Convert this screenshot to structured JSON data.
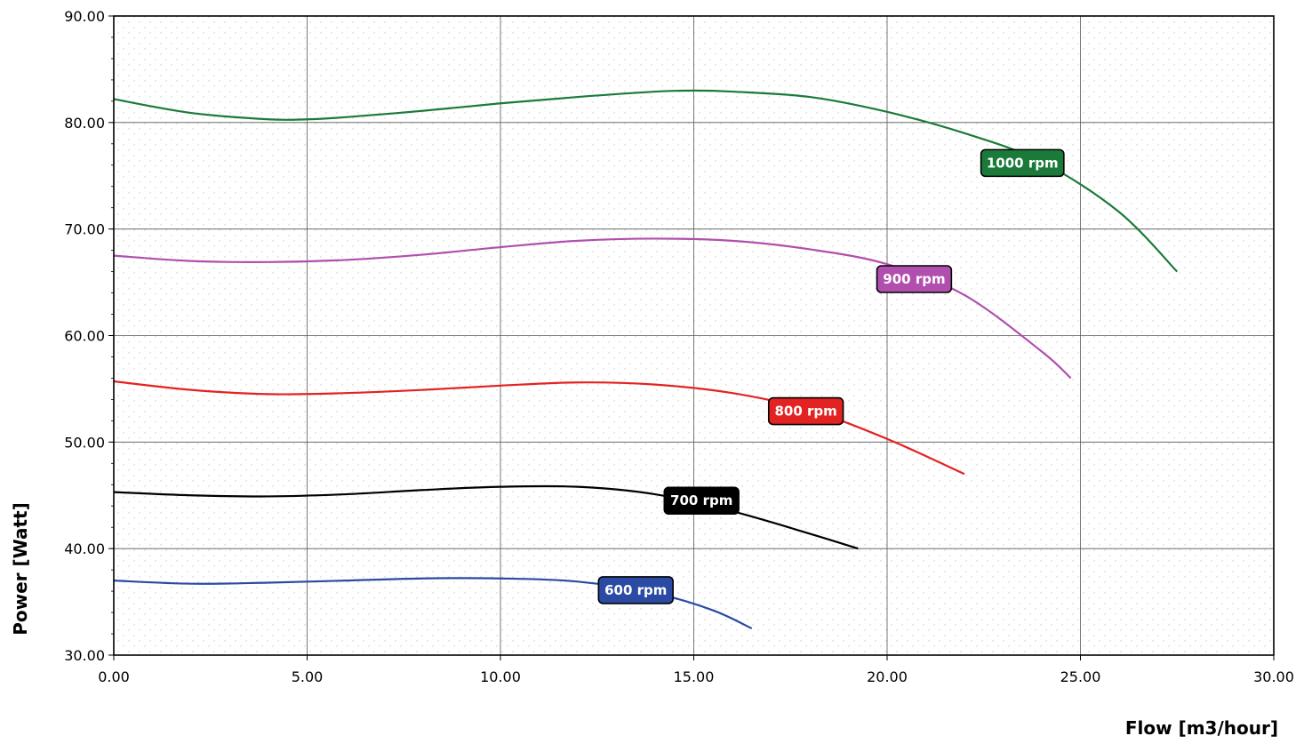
{
  "chart_data": {
    "type": "line",
    "title": "",
    "xlabel": "Flow [m3/hour]",
    "ylabel": "Power [Watt]",
    "xlim": [
      0,
      30
    ],
    "ylim": [
      30,
      90
    ],
    "x_ticks": [
      "0.00",
      "5.00",
      "10.00",
      "15.00",
      "20.00",
      "25.00",
      "30.00"
    ],
    "y_ticks": [
      "30.00",
      "40.00",
      "50.00",
      "60.00",
      "70.00",
      "80.00",
      "90.00"
    ],
    "grid": true,
    "legend": "inline labels on curves",
    "series": [
      {
        "name": "600 rpm",
        "color": "#2b4aa3",
        "x": [
          0,
          2,
          4,
          6,
          8,
          10,
          12,
          14,
          15.5,
          16.5
        ],
        "y": [
          37.0,
          36.7,
          36.8,
          37.0,
          37.2,
          37.2,
          36.9,
          35.8,
          34.2,
          32.5
        ],
        "label_at": [
          13.5,
          36.1
        ]
      },
      {
        "name": "700 rpm",
        "color": "#000000",
        "x": [
          0,
          2,
          4,
          6,
          8,
          10,
          12,
          14,
          16,
          18,
          19.25
        ],
        "y": [
          45.3,
          45.0,
          44.9,
          45.1,
          45.5,
          45.8,
          45.8,
          45.1,
          43.5,
          41.4,
          40.0
        ],
        "label_at": [
          15.2,
          44.5
        ]
      },
      {
        "name": "800 rpm",
        "color": "#e32222",
        "x": [
          0,
          2,
          4,
          6,
          8,
          10,
          12,
          14,
          16,
          18,
          20,
          22
        ],
        "y": [
          55.7,
          54.9,
          54.5,
          54.6,
          54.9,
          55.3,
          55.6,
          55.4,
          54.6,
          53.0,
          50.3,
          47.0
        ],
        "label_at": [
          17.9,
          52.9
        ]
      },
      {
        "name": "900 rpm",
        "color": "#b04fad",
        "x": [
          0,
          2,
          4,
          6,
          8,
          10,
          12,
          14,
          16,
          18,
          20,
          22,
          24,
          24.75
        ],
        "y": [
          67.5,
          67.0,
          66.9,
          67.1,
          67.6,
          68.3,
          68.9,
          69.1,
          68.9,
          68.1,
          66.7,
          63.8,
          58.5,
          56.0
        ],
        "label_at": [
          20.7,
          65.3
        ]
      },
      {
        "name": "1000 rpm",
        "color": "#1b7a3a",
        "x": [
          0,
          2,
          4,
          5,
          6,
          8,
          10,
          12,
          14,
          15,
          16,
          18,
          20,
          22,
          24,
          26,
          27.5
        ],
        "y": [
          82.2,
          80.9,
          80.3,
          80.3,
          80.5,
          81.1,
          81.8,
          82.4,
          82.9,
          83.0,
          82.9,
          82.4,
          81.0,
          79.0,
          76.3,
          71.6,
          66.0
        ],
        "label_at": [
          23.5,
          76.2
        ]
      }
    ]
  }
}
